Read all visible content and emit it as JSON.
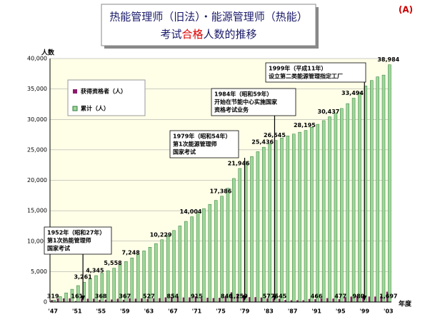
{
  "corner_label": "(A)",
  "chart_data": {
    "type": "bar",
    "title_line1": "热能管理师（旧法）・能源管理师（热能）",
    "title_line2": [
      "考试",
      "合格",
      "人数的推移"
    ],
    "y_label": "人数",
    "x_label": "年度",
    "categories": [
      "'47",
      null,
      null,
      null,
      "'51",
      null,
      null,
      null,
      "'55",
      null,
      null,
      null,
      "'59",
      null,
      null,
      null,
      "'63",
      null,
      null,
      null,
      "'67",
      null,
      null,
      null,
      "'71",
      null,
      null,
      null,
      "'75",
      null,
      null,
      null,
      "'79",
      null,
      null,
      null,
      "'83",
      null,
      null,
      null,
      "'87",
      null,
      null,
      null,
      "'91",
      null,
      null,
      null,
      "'95",
      null,
      null,
      null,
      "'99",
      null,
      null,
      null,
      "'03"
    ],
    "series": [
      {
        "name": "获得资格者（人）",
        "color": "#8b1a6b",
        "values": [
          319,
          580,
          600,
          600,
          161,
          560,
          540,
          545,
          368,
          400,
          408,
          540,
          367,
          598,
          550,
          600,
          527,
          600,
          629,
          770,
          854,
          750,
          750,
          754,
          915,
          650,
          700,
          650,
          686,
          846,
          1600,
          1259,
          1154,
          800,
          800,
          736,
          577,
          564,
          545,
          350,
          300,
          300,
          295,
          505,
          466,
          600,
          637,
          563,
          477,
          800,
          894,
          980,
          1006,
          900,
          900,
          987,
          1697
        ],
        "value_labels": [
          "319",
          null,
          null,
          null,
          "161",
          null,
          null,
          null,
          "368",
          null,
          null,
          null,
          "367",
          null,
          null,
          null,
          "527",
          null,
          null,
          null,
          "854",
          null,
          null,
          null,
          "915",
          null,
          null,
          null,
          null,
          "846",
          null,
          "1,259",
          null,
          null,
          null,
          null,
          "577",
          null,
          "545",
          null,
          null,
          null,
          null,
          null,
          "466",
          null,
          null,
          null,
          "477",
          null,
          null,
          "980",
          null,
          null,
          null,
          null,
          "1,697"
        ]
      },
      {
        "name": "累计（人）",
        "color": "#9ed69a",
        "values": [
          319,
          900,
          1500,
          2100,
          2700,
          3261,
          3800,
          4345,
          4750,
          5150,
          5558,
          6100,
          6650,
          7248,
          7800,
          8400,
          9000,
          9600,
          10229,
          11000,
          11750,
          12500,
          13250,
          14004,
          14700,
          15350,
          16050,
          16700,
          17386,
          18700,
          20300,
          21946,
          23100,
          23900,
          24700,
          25436,
          26000,
          26545,
          26950,
          27300,
          27600,
          27900,
          28195,
          28700,
          29200,
          29800,
          30437,
          31000,
          31800,
          32600,
          33494,
          34500,
          35500,
          36400,
          37000,
          37287,
          38984
        ],
        "value_labels": [
          null,
          null,
          null,
          null,
          null,
          "3,261",
          null,
          "4,345",
          null,
          null,
          "5,558",
          null,
          null,
          "7,248",
          null,
          null,
          null,
          null,
          "10,229",
          null,
          null,
          null,
          null,
          "14,004",
          null,
          null,
          null,
          null,
          "17,386",
          null,
          null,
          "21,946",
          null,
          null,
          null,
          "25,436",
          null,
          "26,545",
          null,
          null,
          null,
          null,
          "28,195",
          null,
          null,
          null,
          "30,437",
          null,
          null,
          null,
          "33,494",
          null,
          null,
          null,
          null,
          null,
          "38,984"
        ]
      }
    ],
    "ylim": [
      0,
      40000
    ],
    "yticks": [
      0,
      {
        "value": 5000,
        "label": "5,000"
      },
      {
        "value": 10000,
        "label": "10,000"
      },
      {
        "value": 15000,
        "label": "15,000"
      },
      {
        "value": 20000,
        "label": "20,000"
      },
      {
        "value": 25000,
        "label": "25,000"
      },
      {
        "value": 30000,
        "label": "30,000"
      },
      {
        "value": 35000,
        "label": "35,000"
      },
      {
        "value": 40000,
        "label": "40,000"
      }
    ],
    "grid": true,
    "annotations": [
      {
        "lines": [
          "1952年（昭和27年）",
          "第1次热能管理师",
          "国家考试"
        ]
      },
      {
        "lines": [
          "1979年（昭和54年）",
          "第1次能源管理师",
          "国家考试"
        ]
      },
      {
        "lines": [
          "1984年（昭和59年）",
          "开始在节能中心实施国家",
          "资格考试业务"
        ]
      },
      {
        "lines": [
          "1999年（平成11年）",
          "设立第二类能源管理指定工厂"
        ]
      }
    ]
  }
}
